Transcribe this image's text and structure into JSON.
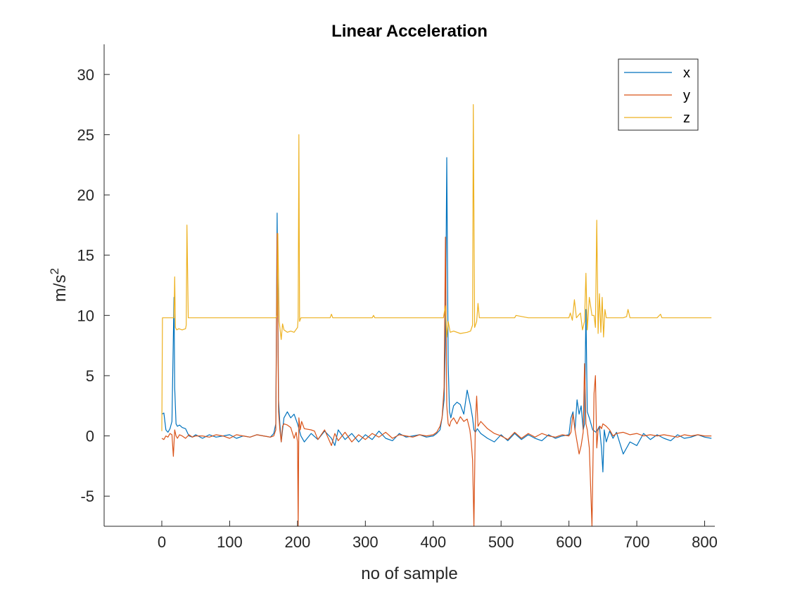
{
  "chart_data": {
    "type": "line",
    "title": "Linear Acceleration",
    "xlabel": "no of sample",
    "ylabel_base": "m/s",
    "ylabel_sup": "2",
    "xlim": [
      -85,
      815
    ],
    "ylim": [
      -7.5,
      32.5
    ],
    "xticks": [
      0,
      100,
      200,
      300,
      400,
      500,
      600,
      700,
      800
    ],
    "xtick_labels": [
      "0",
      "100",
      "200",
      "300",
      "400",
      "500",
      "600",
      "700",
      "800"
    ],
    "yticks": [
      -5,
      0,
      5,
      10,
      15,
      20,
      25,
      30
    ],
    "ytick_labels": [
      "-5",
      "0",
      "5",
      "10",
      "15",
      "20",
      "25",
      "30"
    ],
    "grid": false,
    "legend_position": "top-right",
    "series": [
      {
        "name": "x",
        "color": "#0072BD",
        "x": [
          0,
          3,
          6,
          9,
          12,
          15,
          18,
          19,
          21,
          23,
          26,
          30,
          35,
          40,
          45,
          50,
          60,
          70,
          80,
          90,
          100,
          110,
          120,
          130,
          140,
          150,
          160,
          165,
          168,
          170,
          172,
          174,
          176,
          180,
          185,
          190,
          195,
          200,
          205,
          210,
          220,
          230,
          240,
          250,
          255,
          260,
          270,
          280,
          290,
          300,
          310,
          320,
          330,
          340,
          350,
          360,
          370,
          380,
          390,
          400,
          405,
          410,
          413,
          416,
          418,
          420,
          422,
          424,
          426,
          430,
          435,
          440,
          445,
          450,
          455,
          458,
          460,
          462,
          465,
          470,
          480,
          490,
          500,
          510,
          520,
          530,
          540,
          550,
          560,
          570,
          580,
          590,
          600,
          603,
          606,
          609,
          612,
          615,
          618,
          621,
          623,
          625,
          627,
          630,
          635,
          640,
          645,
          648,
          650,
          652,
          655,
          660,
          665,
          670,
          680,
          690,
          700,
          710,
          720,
          730,
          740,
          750,
          760,
          770,
          780,
          790,
          800,
          810
        ],
        "y": [
          1.8,
          1.9,
          0.5,
          0.3,
          0.6,
          1.2,
          11.5,
          4.0,
          1.0,
          0.8,
          0.9,
          0.7,
          0.6,
          0.0,
          -0.1,
          0.1,
          -0.2,
          0.1,
          -0.1,
          0.0,
          0.1,
          -0.2,
          0.0,
          -0.1,
          0.1,
          0.0,
          -0.1,
          0.2,
          1.0,
          18.5,
          3.0,
          1.0,
          -0.5,
          1.5,
          2.0,
          1.5,
          1.8,
          1.0,
          0.0,
          -0.5,
          0.2,
          -0.3,
          0.4,
          -0.2,
          -0.8,
          0.5,
          -0.3,
          0.2,
          -0.5,
          0.1,
          -0.3,
          0.4,
          -0.2,
          -0.4,
          0.2,
          -0.1,
          0.0,
          0.1,
          -0.1,
          0.0,
          0.2,
          0.5,
          1.5,
          3.0,
          8.0,
          23.1,
          6.0,
          2.0,
          1.5,
          2.5,
          2.8,
          2.6,
          1.8,
          3.8,
          2.5,
          1.5,
          0.5,
          0.3,
          0.6,
          0.2,
          -0.2,
          -0.5,
          0.1,
          -0.4,
          0.2,
          -0.3,
          0.1,
          -0.2,
          -0.4,
          0.1,
          -0.2,
          0.0,
          0.1,
          1.5,
          2.0,
          0.5,
          3.0,
          1.8,
          2.5,
          0.5,
          1.0,
          10.5,
          2.0,
          1.5,
          0.5,
          0.3,
          0.8,
          -1.0,
          -3.0,
          0.5,
          -0.5,
          0.4,
          -0.2,
          0.3,
          -1.5,
          -0.5,
          -0.8,
          0.2,
          -0.3,
          0.1,
          -0.2,
          -0.4,
          0.1,
          -0.2,
          -0.1,
          0.1,
          -0.1,
          -0.2
        ]
      },
      {
        "name": "y",
        "color": "#D95319",
        "x": [
          0,
          3,
          6,
          9,
          12,
          15,
          17,
          19,
          21,
          23,
          26,
          30,
          35,
          40,
          45,
          50,
          60,
          70,
          80,
          90,
          100,
          110,
          120,
          130,
          140,
          150,
          160,
          165,
          168,
          170,
          172,
          174,
          176,
          178,
          180,
          185,
          190,
          195,
          198,
          200,
          201,
          202,
          204,
          206,
          210,
          220,
          225,
          230,
          240,
          250,
          255,
          260,
          270,
          280,
          290,
          300,
          310,
          320,
          330,
          340,
          350,
          360,
          370,
          380,
          390,
          400,
          405,
          410,
          413,
          416,
          418,
          420,
          422,
          424,
          426,
          430,
          435,
          440,
          445,
          450,
          454,
          456,
          458,
          460,
          462,
          464,
          466,
          470,
          480,
          490,
          500,
          510,
          520,
          530,
          540,
          550,
          560,
          570,
          580,
          590,
          600,
          603,
          606,
          609,
          612,
          615,
          618,
          621,
          623,
          625,
          627,
          630,
          634,
          637,
          639,
          641,
          643,
          646,
          648,
          650,
          655,
          660,
          665,
          670,
          680,
          690,
          700,
          710,
          720,
          730,
          740,
          750,
          760,
          770,
          780,
          790,
          800,
          810
        ],
        "y": [
          -0.2,
          -0.3,
          0.0,
          -0.1,
          0.2,
          0.1,
          -1.7,
          0.5,
          0.0,
          -0.2,
          0.1,
          0.0,
          -0.2,
          0.1,
          -0.1,
          0.0,
          0.0,
          -0.1,
          0.1,
          0.0,
          -0.2,
          0.1,
          0.0,
          -0.1,
          0.1,
          0.0,
          -0.1,
          0.0,
          0.5,
          16.8,
          2.0,
          0.5,
          -0.5,
          0.8,
          1.0,
          0.9,
          0.7,
          -0.2,
          0.3,
          -0.5,
          -7.5,
          1.5,
          0.5,
          1.2,
          0.6,
          0.5,
          0.4,
          -0.3,
          0.5,
          -0.8,
          0.2,
          -0.4,
          0.3,
          -0.5,
          0.1,
          -0.3,
          0.2,
          -0.1,
          0.3,
          -0.2,
          0.1,
          0.0,
          -0.1,
          0.1,
          0.0,
          0.1,
          0.3,
          0.8,
          1.5,
          4.0,
          16.5,
          2.5,
          1.0,
          0.8,
          1.2,
          1.5,
          1.0,
          1.6,
          1.2,
          1.4,
          0.5,
          -0.5,
          -2.0,
          -7.5,
          1.0,
          3.3,
          0.8,
          1.2,
          0.6,
          0.2,
          0.0,
          -0.3,
          0.3,
          -0.2,
          0.2,
          -0.1,
          0.2,
          0.0,
          -0.1,
          0.1,
          0.0,
          0.3,
          1.8,
          0.5,
          -0.5,
          -1.5,
          -0.8,
          0.3,
          6.0,
          1.0,
          0.5,
          -1.0,
          -7.5,
          3.5,
          5.0,
          -1.0,
          0.5,
          0.8,
          0.6,
          1.0,
          0.8,
          0.5,
          0.0,
          0.2,
          0.3,
          0.1,
          0.2,
          0.0,
          0.1,
          0.0,
          0.1,
          0.0,
          -0.1,
          0.1,
          0.0,
          0.1,
          0.0,
          0.0
        ]
      },
      {
        "name": "z",
        "color": "#EDB120",
        "x": [
          0,
          1,
          3,
          10,
          15,
          18,
          19,
          20,
          22,
          25,
          30,
          35,
          36,
          37,
          39,
          45,
          60,
          100,
          160,
          168,
          170,
          171,
          173,
          176,
          178,
          180,
          185,
          190,
          195,
          200,
          201,
          202,
          203,
          205,
          210,
          240,
          248,
          250,
          252,
          260,
          300,
          310,
          312,
          314,
          350,
          400,
          405,
          410,
          415,
          418,
          420,
          422,
          425,
          430,
          440,
          450,
          455,
          458,
          459,
          461,
          464,
          466,
          468,
          470,
          500,
          520,
          522,
          540,
          600,
          602,
          605,
          608,
          611,
          614,
          617,
          620,
          623,
          625,
          627,
          630,
          634,
          637,
          639,
          641,
          643,
          645,
          647,
          649,
          651,
          653,
          655,
          660,
          680,
          685,
          687,
          690,
          700,
          730,
          735,
          737,
          740,
          770,
          810
        ],
        "y": [
          0.4,
          9.8,
          9.8,
          9.8,
          9.8,
          9.8,
          13.2,
          9.0,
          8.8,
          8.9,
          8.8,
          8.9,
          9.2,
          17.5,
          9.8,
          9.8,
          9.8,
          9.8,
          9.8,
          9.8,
          10.0,
          16.8,
          9.5,
          8.0,
          9.3,
          8.8,
          8.6,
          8.7,
          8.6,
          9.0,
          9.8,
          25.0,
          9.5,
          9.8,
          9.8,
          9.8,
          9.8,
          10.1,
          9.8,
          9.8,
          9.8,
          9.8,
          10.0,
          9.8,
          9.8,
          9.8,
          9.8,
          9.8,
          9.8,
          10.8,
          8.2,
          9.5,
          8.6,
          8.7,
          8.5,
          8.6,
          8.7,
          9.2,
          27.5,
          9.0,
          9.5,
          11.0,
          9.8,
          9.8,
          9.8,
          9.8,
          10.0,
          9.8,
          9.8,
          10.2,
          9.6,
          11.3,
          9.8,
          10.0,
          10.2,
          8.8,
          9.5,
          13.5,
          8.8,
          11.5,
          10.0,
          10.0,
          9.0,
          17.9,
          8.5,
          11.8,
          8.6,
          11.5,
          8.2,
          10.5,
          9.8,
          9.8,
          9.8,
          9.9,
          10.5,
          9.8,
          9.8,
          9.8,
          10.1,
          9.8,
          9.8,
          9.8,
          9.8
        ]
      }
    ]
  }
}
